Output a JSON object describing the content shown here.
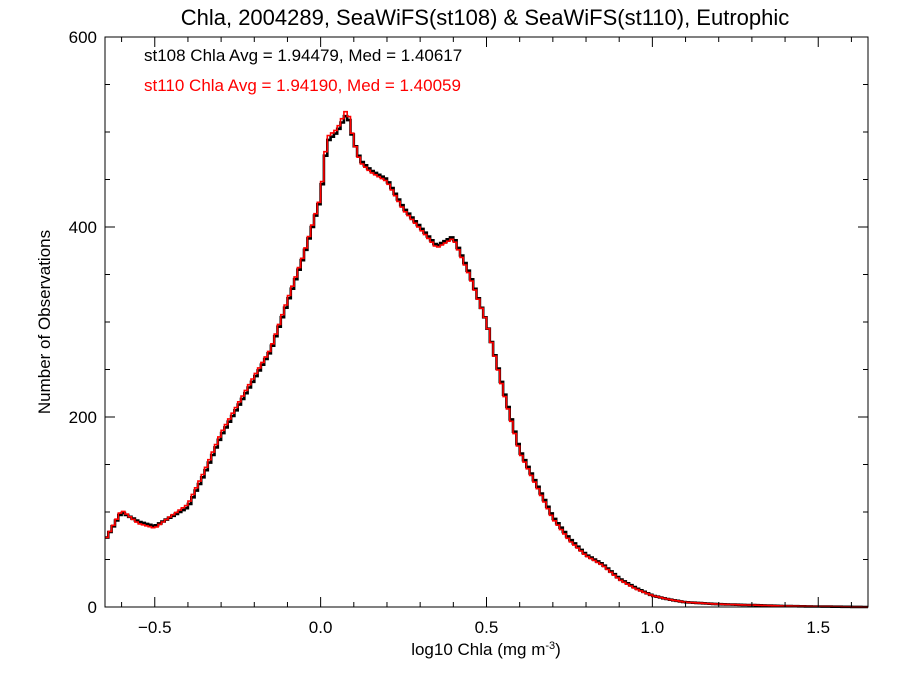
{
  "chart_data": {
    "type": "histogram",
    "title": "Chla, 2004289, SeaWiFS(st108) & SeaWiFS(st110), Eutrophic",
    "xlabel_main": "log10 Chla (mg m",
    "xlabel_sup": "-3",
    "xlabel_close": ")",
    "ylabel": "Number of Observations",
    "xlim": [
      -0.65,
      1.65
    ],
    "ylim": [
      0,
      600
    ],
    "xticks": [
      -0.5,
      0.0,
      0.5,
      1.0,
      1.5
    ],
    "xtick_labels": [
      "−0.5",
      "0.0",
      "0.5",
      "1.0",
      "1.5"
    ],
    "yticks": [
      0,
      200,
      400,
      600
    ],
    "ytick_labels": [
      "0",
      "200",
      "400",
      "600"
    ],
    "annotations": [
      {
        "text": "st108 Chla Avg = 1.94479, Med = 1.40617",
        "color": "#000000"
      },
      {
        "text": "st110 Chla Avg = 1.94190, Med = 1.40059",
        "color": "#ff0000"
      }
    ],
    "bin_width": 0.01,
    "series": [
      {
        "color": "#000000",
        "x": [
          -0.65,
          -0.6,
          -0.55,
          -0.5,
          -0.45,
          -0.4,
          -0.35,
          -0.3,
          -0.25,
          -0.2,
          -0.15,
          -0.1,
          -0.05,
          0.0,
          0.02,
          0.05,
          0.08,
          0.1,
          0.12,
          0.15,
          0.2,
          0.25,
          0.3,
          0.35,
          0.4,
          0.45,
          0.5,
          0.55,
          0.6,
          0.65,
          0.7,
          0.75,
          0.8,
          0.85,
          0.9,
          0.95,
          1.0,
          1.05,
          1.1,
          1.2,
          1.3,
          1.4,
          1.5,
          1.65
        ],
        "y": [
          70,
          100,
          90,
          85,
          95,
          105,
          140,
          180,
          210,
          240,
          270,
          320,
          370,
          430,
          490,
          500,
          520,
          490,
          470,
          460,
          450,
          420,
          400,
          380,
          390,
          350,
          300,
          230,
          165,
          130,
          95,
          72,
          55,
          45,
          30,
          20,
          12,
          8,
          5,
          3,
          2,
          1,
          0.5,
          0
        ]
      },
      {
        "color": "#ff0000",
        "x": [
          -0.65,
          -0.6,
          -0.55,
          -0.5,
          -0.45,
          -0.4,
          -0.35,
          -0.3,
          -0.25,
          -0.2,
          -0.15,
          -0.1,
          -0.05,
          0.0,
          0.02,
          0.05,
          0.08,
          0.1,
          0.12,
          0.15,
          0.2,
          0.25,
          0.3,
          0.35,
          0.4,
          0.45,
          0.5,
          0.55,
          0.6,
          0.65,
          0.7,
          0.75,
          0.8,
          0.85,
          0.9,
          0.95,
          1.0,
          1.05,
          1.1,
          1.2,
          1.3,
          1.4,
          1.5,
          1.65
        ],
        "y": [
          70,
          102,
          88,
          83,
          96,
          108,
          143,
          183,
          213,
          243,
          272,
          323,
          372,
          432,
          495,
          503,
          525,
          490,
          468,
          458,
          448,
          418,
          398,
          378,
          388,
          348,
          300,
          228,
          163,
          128,
          93,
          70,
          54,
          44,
          29,
          19,
          12,
          8,
          5,
          3,
          2,
          1,
          0.5,
          0
        ]
      }
    ]
  }
}
